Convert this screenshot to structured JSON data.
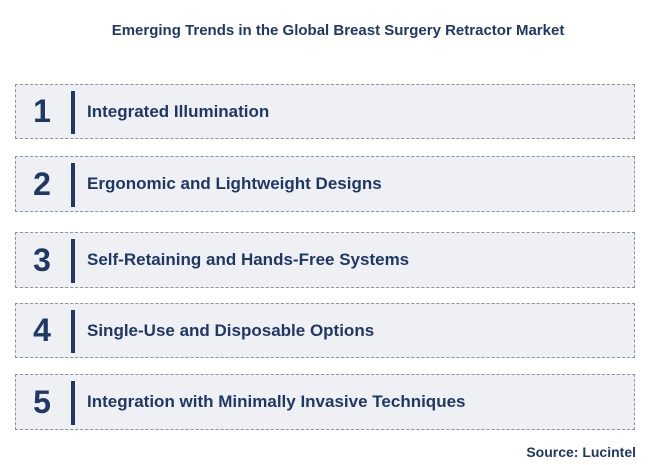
{
  "title": "Emerging Trends in the Global Breast Surgery Retractor Market",
  "items": [
    {
      "number": "1",
      "label": "Integrated Illumination"
    },
    {
      "number": "2",
      "label": "Ergonomic and Lightweight Designs"
    },
    {
      "number": "3",
      "label": "Self-Retaining and Hands-Free Systems"
    },
    {
      "number": "4",
      "label": "Single-Use and Disposable Options"
    },
    {
      "number": "5",
      "label": "Integration with Minimally Invasive Techniques"
    }
  ],
  "source": "Source: Lucintel"
}
